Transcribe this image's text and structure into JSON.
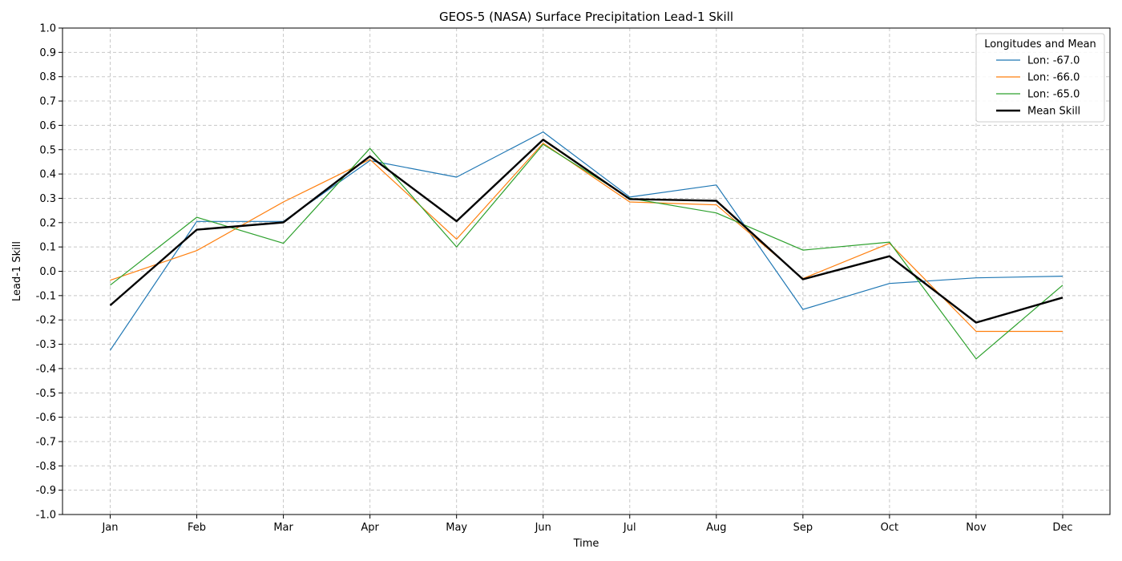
{
  "chart_data": {
    "type": "line",
    "title": "GEOS-5 (NASA) Surface Precipitation Lead-1 Skill",
    "xlabel": "Time",
    "ylabel": "Lead-1 Skill",
    "categories": [
      "Jan",
      "Feb",
      "Mar",
      "Apr",
      "May",
      "Jun",
      "Jul",
      "Aug",
      "Sep",
      "Oct",
      "Nov",
      "Dec"
    ],
    "ylim": [
      -1.0,
      1.0
    ],
    "yticks": [
      "-1.0",
      "-0.9",
      "-0.8",
      "-0.7",
      "-0.6",
      "-0.5",
      "-0.4",
      "-0.3",
      "-0.2",
      "-0.1",
      "0.0",
      "0.1",
      "0.2",
      "0.3",
      "0.4",
      "0.5",
      "0.6",
      "0.7",
      "0.8",
      "0.9",
      "1.0"
    ],
    "grid": true,
    "legend": {
      "title": "Longitudes and Mean",
      "placement": "top-right"
    },
    "series": [
      {
        "name": "Lon: -67.0",
        "color": "#1f77b4",
        "values": [
          -0.325,
          0.205,
          0.205,
          0.455,
          0.387,
          0.573,
          0.305,
          0.355,
          -0.157,
          -0.05,
          -0.027,
          -0.02
        ]
      },
      {
        "name": "Lon: -66.0",
        "color": "#ff7f0e",
        "values": [
          -0.037,
          0.085,
          0.285,
          0.46,
          0.132,
          0.527,
          0.285,
          0.273,
          -0.03,
          0.115,
          -0.247,
          -0.247
        ]
      },
      {
        "name": "Lon: -65.0",
        "color": "#2ca02c",
        "values": [
          -0.057,
          0.222,
          0.115,
          0.505,
          0.1,
          0.522,
          0.3,
          0.24,
          0.087,
          0.12,
          -0.36,
          -0.057
        ]
      },
      {
        "name": "Mean Skill",
        "color": "#000000",
        "bold": true,
        "values": [
          -0.14,
          0.171,
          0.201,
          0.473,
          0.206,
          0.541,
          0.297,
          0.29,
          -0.033,
          0.062,
          -0.211,
          -0.108
        ]
      }
    ]
  }
}
